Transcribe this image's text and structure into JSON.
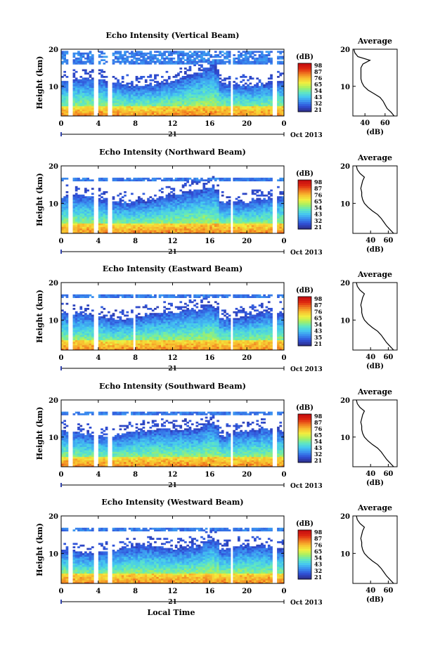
{
  "chart_data": [
    {
      "type": "heatmap",
      "title": "Echo Intensity (Vertical Beam)",
      "ylabel": "Height (km)",
      "ylim": [
        2,
        20
      ],
      "yticks": [
        "20",
        "10"
      ],
      "xticks": [
        "0",
        "4",
        "8",
        "12",
        "16",
        "20",
        "0"
      ],
      "xlim": [
        0,
        24
      ],
      "day_label": "21",
      "date_label": "Oct 2013",
      "colorbar": {
        "unit": "(dB)",
        "ticks": [
          "98",
          "87",
          "76",
          "65",
          "54",
          "43",
          "32",
          "21"
        ]
      },
      "tropopause_km": 16.5,
      "gaps_hr": [
        1.0,
        3.7,
        5.2,
        18.4,
        23.0
      ],
      "average_profile": {
        "title": "Average",
        "xlabel": "(dB)",
        "xticks": [
          "40",
          "60"
        ],
        "xlim": [
          28,
          72
        ],
        "yticks": [
          "20",
          "10"
        ],
        "height_km": [
          2,
          3,
          4,
          5,
          6,
          7,
          8,
          9,
          10,
          11,
          12,
          13,
          14,
          15,
          16,
          17,
          18,
          19,
          20
        ],
        "values_db": [
          69,
          66,
          62,
          60,
          58,
          55,
          49,
          43,
          39,
          37,
          36,
          36,
          36,
          36,
          38,
          45,
          33,
          30,
          29
        ]
      }
    },
    {
      "type": "heatmap",
      "title": "Echo Intensity (Northward Beam)",
      "ylabel": "Height (km)",
      "ylim": [
        2,
        20
      ],
      "yticks": [
        "20",
        "10"
      ],
      "xticks": [
        "0",
        "4",
        "8",
        "12",
        "16",
        "20",
        "0"
      ],
      "xlim": [
        0,
        24
      ],
      "day_label": "21",
      "date_label": "Oct 2013",
      "colorbar": {
        "unit": "(dB)",
        "ticks": [
          "98",
          "87",
          "76",
          "65",
          "54",
          "43",
          "32",
          "21"
        ]
      },
      "tropopause_km": 16.5,
      "gaps_hr": [
        1.0,
        3.7,
        5.2,
        18.4,
        23.0
      ],
      "average_profile": {
        "title": "Average",
        "xlabel": "(dB)",
        "xticks": [
          "40",
          "60"
        ],
        "xlim": [
          20,
          70
        ],
        "yticks": [
          "20",
          "10"
        ],
        "height_km": [
          2,
          3,
          4,
          5,
          6,
          7,
          8,
          9,
          10,
          11,
          12,
          13,
          14,
          15,
          16,
          17,
          18,
          19,
          20
        ],
        "values_db": [
          66,
          62,
          58,
          55,
          52,
          48,
          42,
          37,
          33,
          31,
          30,
          30,
          29,
          30,
          31,
          33,
          28,
          25,
          24
        ]
      }
    },
    {
      "type": "heatmap",
      "title": "Echo Intensity (Eastward Beam)",
      "ylabel": "Height (km)",
      "ylim": [
        2,
        20
      ],
      "yticks": [
        "20",
        "10"
      ],
      "xticks": [
        "0",
        "4",
        "8",
        "12",
        "16",
        "20",
        "0"
      ],
      "xlim": [
        0,
        24
      ],
      "day_label": "21",
      "date_label": "Oct 2013",
      "colorbar": {
        "unit": "(dB)",
        "ticks": [
          "98",
          "87",
          "76",
          "65",
          "54",
          "43",
          "35",
          "21"
        ]
      },
      "tropopause_km": 16.5,
      "gaps_hr": [
        1.0,
        3.7,
        7.9,
        18.4,
        23.0
      ],
      "average_profile": {
        "title": "Average",
        "xlabel": "(dB)",
        "xticks": [
          "40",
          "60"
        ],
        "xlim": [
          20,
          70
        ],
        "yticks": [
          "20",
          "10"
        ],
        "height_km": [
          2,
          3,
          4,
          5,
          6,
          7,
          8,
          9,
          10,
          11,
          12,
          13,
          14,
          15,
          16,
          17,
          18,
          19,
          20
        ],
        "values_db": [
          66,
          62,
          58,
          55,
          52,
          48,
          42,
          37,
          33,
          31,
          30,
          30,
          29,
          30,
          31,
          33,
          28,
          25,
          24
        ]
      }
    },
    {
      "type": "heatmap",
      "title": "Echo Intensity (Southward Beam)",
      "ylabel": "Height (km)",
      "ylim": [
        2,
        20
      ],
      "yticks": [
        "20",
        "10"
      ],
      "xticks": [
        "0",
        "4",
        "8",
        "12",
        "16",
        "20",
        "0"
      ],
      "xlim": [
        0,
        24
      ],
      "day_label": "21",
      "date_label": "Oct 2013",
      "colorbar": {
        "unit": "(dB)",
        "ticks": [
          "98",
          "87",
          "76",
          "65",
          "54",
          "43",
          "32",
          "21"
        ]
      },
      "tropopause_km": 16.5,
      "gaps_hr": [
        1.0,
        3.7,
        5.2,
        18.4,
        23.0
      ],
      "average_profile": {
        "title": "Average",
        "xlabel": "(dB)",
        "xticks": [
          "40",
          "60"
        ],
        "xlim": [
          20,
          70
        ],
        "yticks": [
          "20",
          "10"
        ],
        "height_km": [
          2,
          3,
          4,
          5,
          6,
          7,
          8,
          9,
          10,
          11,
          12,
          13,
          14,
          15,
          16,
          17,
          18,
          19,
          20
        ],
        "values_db": [
          66,
          62,
          58,
          55,
          52,
          48,
          42,
          37,
          33,
          31,
          30,
          30,
          29,
          30,
          31,
          33,
          28,
          25,
          24
        ]
      }
    },
    {
      "type": "heatmap",
      "title": "Echo Intensity (Westward Beam)",
      "ylabel": "Height (km)",
      "ylim": [
        2,
        20
      ],
      "yticks": [
        "20",
        "10"
      ],
      "xticks": [
        "0",
        "4",
        "8",
        "12",
        "16",
        "20",
        "0"
      ],
      "xlim": [
        0,
        24
      ],
      "day_label": "21",
      "date_label": "Oct 2013",
      "xlabel": "Local Time",
      "colorbar": {
        "unit": "(dB)",
        "ticks": [
          "98",
          "87",
          "76",
          "65",
          "54",
          "43",
          "32",
          "21"
        ]
      },
      "tropopause_km": 16.5,
      "gaps_hr": [
        1.0,
        3.7,
        5.2,
        18.4,
        23.0
      ],
      "average_profile": {
        "title": "Average",
        "xlabel": "(dB)",
        "xticks": [
          "40",
          "60"
        ],
        "xlim": [
          20,
          70
        ],
        "yticks": [
          "20",
          "10"
        ],
        "height_km": [
          2,
          3,
          4,
          5,
          6,
          7,
          8,
          9,
          10,
          11,
          12,
          13,
          14,
          15,
          16,
          17,
          18,
          19,
          20
        ],
        "values_db": [
          66,
          62,
          58,
          55,
          52,
          48,
          42,
          37,
          33,
          31,
          30,
          30,
          29,
          30,
          31,
          33,
          28,
          25,
          24
        ]
      }
    }
  ],
  "colormap": [
    "#2b2f8f",
    "#3050d8",
    "#3a8ef0",
    "#45c8f0",
    "#60e8c0",
    "#a8f060",
    "#f0f040",
    "#f8c030",
    "#f07a20",
    "#e02a10",
    "#c81010"
  ]
}
